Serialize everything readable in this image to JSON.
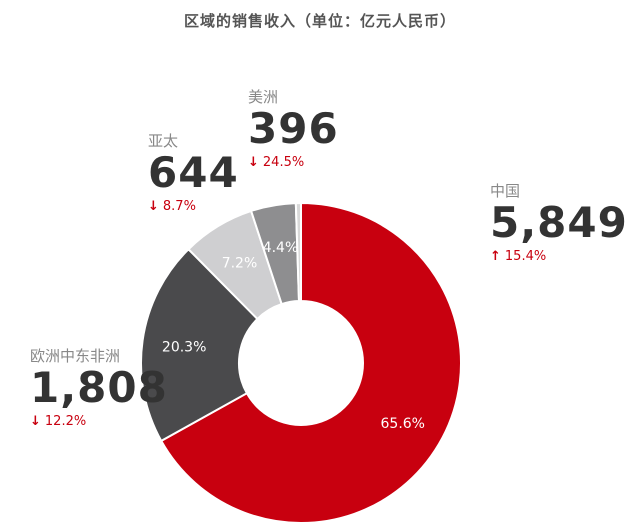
{
  "chart_data": {
    "type": "pie",
    "title": "区域的销售收入（单位：亿元人民币）",
    "slices": [
      {
        "name": "中国",
        "value": 5849,
        "value_label": "5,849",
        "percent": 65.6,
        "percent_label": "65.6%",
        "change": "15.4%",
        "direction": "up",
        "color": "#c8000f"
      },
      {
        "name": "欧洲中东非洲",
        "value": 1808,
        "value_label": "1,808",
        "percent": 20.3,
        "percent_label": "20.3%",
        "change": "12.2%",
        "direction": "down",
        "color": "#4a4a4c"
      },
      {
        "name": "亚太",
        "value": 644,
        "value_label": "644",
        "percent": 7.2,
        "percent_label": "7.2%",
        "change": "8.7%",
        "direction": "down",
        "color": "#cfcfd1"
      },
      {
        "name": "美洲",
        "value": 396,
        "value_label": "396",
        "percent": 4.4,
        "percent_label": "4.4%",
        "change": "24.5%",
        "direction": "down",
        "color": "#8e8e90"
      },
      {
        "name": "",
        "value": 45,
        "percent": 0.5,
        "percent_label": "",
        "change": "",
        "direction": "",
        "color": "#d9d9d9"
      }
    ]
  },
  "symbols": {
    "up": "↑",
    "down": "↓"
  },
  "colors": {
    "up": "#c8000f",
    "down": "#c8000f"
  }
}
